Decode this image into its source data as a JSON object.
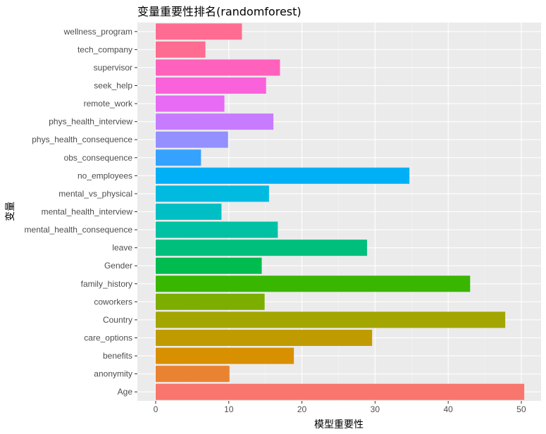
{
  "chart_data": {
    "type": "bar",
    "orientation": "horizontal",
    "title": "变量重要性排名(randomforest)",
    "xlabel": "模型重要性",
    "ylabel": "变量",
    "xlim": [
      -2.5,
      52.7
    ],
    "xticks": [
      0,
      10,
      20,
      30,
      40,
      50
    ],
    "grid": true,
    "legend": "none",
    "categories": [
      "Age",
      "anonymity",
      "benefits",
      "care_options",
      "Country",
      "coworkers",
      "family_history",
      "Gender",
      "leave",
      "mental_health_consequence",
      "mental_health_interview",
      "mental_vs_physical",
      "no_employees",
      "obs_consequence",
      "phys_health_consequence",
      "phys_health_interview",
      "remote_work",
      "seek_help",
      "supervisor",
      "tech_company",
      "wellness_program"
    ],
    "values": [
      50.4,
      10.1,
      18.9,
      29.6,
      47.8,
      14.9,
      43.0,
      14.5,
      28.9,
      16.7,
      9.0,
      15.5,
      34.7,
      6.2,
      9.9,
      16.1,
      9.4,
      15.1,
      17.0,
      6.8,
      11.8
    ],
    "colors": [
      "#F8766D",
      "#EA8331",
      "#D89000",
      "#C09B00",
      "#A3A500",
      "#7CAE00",
      "#39B600",
      "#00BB4E",
      "#00BF7D",
      "#00C1A3",
      "#00BFC4",
      "#00BAE0",
      "#00B0F6",
      "#35A2FF",
      "#9590FF",
      "#C77CFF",
      "#E76BF3",
      "#FA62DB",
      "#FF62BC",
      "#FF6C91",
      "#FF6C91"
    ]
  }
}
